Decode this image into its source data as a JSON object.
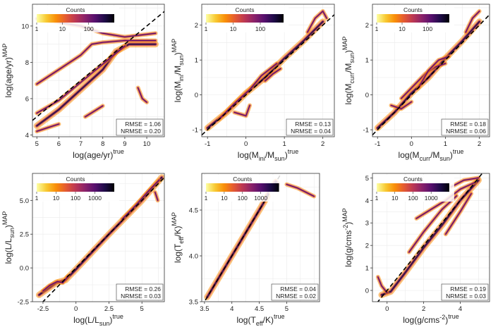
{
  "chart_data": [
    {
      "type": "heatmap",
      "xlabel": "log(age/yr)",
      "xlabel_sup": "true",
      "ylabel": "log(age/yr)",
      "ylabel_sup": "MAP",
      "xlim": [
        4.8,
        10.8
      ],
      "ylim": [
        3.9,
        11.2
      ],
      "xticks": [
        5,
        6,
        7,
        8,
        9,
        10
      ],
      "yticks": [
        4,
        6,
        8,
        10
      ],
      "legend_title": "Counts",
      "legend_ticks": [
        {
          "label": "1",
          "frac": 0.0
        },
        {
          "label": "10",
          "frac": 0.33
        },
        {
          "label": "100",
          "frac": 0.67
        }
      ],
      "rmse_text": "RMSE = 1.06",
      "nrmse_text": "NRMSE = 0.20",
      "line": [
        4.8,
        10.8
      ],
      "density_tracks": [
        [
          [
            5.0,
            4.5
          ],
          [
            6.0,
            5.4
          ],
          [
            7.0,
            6.5
          ],
          [
            8.0,
            7.6
          ],
          [
            8.6,
            8.6
          ],
          [
            9.2,
            9.0
          ],
          [
            10.4,
            9.0
          ]
        ],
        [
          [
            5.0,
            5.2
          ],
          [
            6.0,
            5.9
          ],
          [
            7.0,
            6.9
          ],
          [
            8.0,
            7.9
          ],
          [
            9.0,
            8.9
          ]
        ],
        [
          [
            5.0,
            6.8
          ],
          [
            6.0,
            7.6
          ],
          [
            7.0,
            8.4
          ],
          [
            7.5,
            9.0
          ],
          [
            8.0,
            9.1
          ],
          [
            9.0,
            9.2
          ],
          [
            10.4,
            9.2
          ]
        ],
        [
          [
            5.0,
            4.2
          ],
          [
            5.5,
            4.4
          ],
          [
            6.0,
            4.6
          ]
        ],
        [
          [
            7.2,
            5.0
          ],
          [
            7.6,
            5.3
          ],
          [
            8.0,
            5.6
          ]
        ],
        [
          [
            5.0,
            10.4
          ],
          [
            6.0,
            10.2
          ],
          [
            7.0,
            10.0
          ],
          [
            8.0,
            9.6
          ],
          [
            9.0,
            9.4
          ],
          [
            10.4,
            9.6
          ]
        ],
        [
          [
            9.6,
            6.6
          ],
          [
            9.8,
            6.0
          ],
          [
            10.0,
            5.8
          ]
        ]
      ]
    },
    {
      "type": "heatmap",
      "xlabel": "log(M_ini/M_sun)",
      "xlabel_sup": "true",
      "ylabel": "log(M_ini/M_sun)",
      "ylabel_sup": "MAP",
      "xlim": [
        -1.15,
        2.3
      ],
      "ylim": [
        -1.2,
        2.6
      ],
      "xticks": [
        -1,
        0,
        1,
        2
      ],
      "yticks": [
        -1,
        0,
        1,
        2
      ],
      "legend_title": "Counts",
      "legend_ticks": [
        {
          "label": "1",
          "frac": 0.0
        },
        {
          "label": "10",
          "frac": 0.35
        },
        {
          "label": "100",
          "frac": 0.7
        }
      ],
      "rmse_text": "RMSE = 0.13",
      "nrmse_text": "NRMSE = 0.04",
      "line": [
        -1.15,
        2.3
      ],
      "density_tracks": [
        [
          [
            -1.0,
            -0.95
          ],
          [
            -0.5,
            -0.5
          ],
          [
            0.0,
            0.05
          ],
          [
            0.5,
            0.5
          ],
          [
            1.0,
            1.05
          ],
          [
            1.5,
            1.55
          ],
          [
            2.0,
            2.1
          ]
        ],
        [
          [
            -0.7,
            -0.7
          ],
          [
            -0.3,
            -0.25
          ],
          [
            0.1,
            0.15
          ],
          [
            0.4,
            0.55
          ],
          [
            0.8,
            0.9
          ]
        ],
        [
          [
            -0.3,
            -0.5
          ],
          [
            0.0,
            -0.6
          ],
          [
            0.1,
            -0.3
          ]
        ],
        [
          [
            1.6,
            1.8
          ],
          [
            1.8,
            2.2
          ],
          [
            2.0,
            2.4
          ],
          [
            2.1,
            2.2
          ]
        ],
        [
          [
            0.5,
            0.4
          ],
          [
            0.7,
            0.6
          ],
          [
            0.9,
            0.75
          ]
        ]
      ]
    },
    {
      "type": "heatmap",
      "xlabel": "log(M_curr/M_sun)",
      "xlabel_sup": "true",
      "ylabel": "log(M_curr/M_sun)",
      "ylabel_sup": "MAP",
      "xlim": [
        -1.15,
        2.3
      ],
      "ylim": [
        -1.2,
        2.6
      ],
      "xticks": [
        -1,
        0,
        1,
        2
      ],
      "yticks": [
        -1,
        0,
        1,
        2
      ],
      "legend_title": "Counts",
      "legend_ticks": [
        {
          "label": "1",
          "frac": 0.0
        },
        {
          "label": "10",
          "frac": 0.35
        },
        {
          "label": "100",
          "frac": 0.7
        }
      ],
      "rmse_text": "RMSE = 0.18",
      "nrmse_text": "NRMSE = 0.06",
      "line": [
        -1.15,
        2.3
      ],
      "density_tracks": [
        [
          [
            -1.0,
            -0.95
          ],
          [
            -0.5,
            -0.5
          ],
          [
            0.0,
            0.05
          ],
          [
            0.5,
            0.5
          ],
          [
            1.0,
            1.05
          ],
          [
            1.5,
            1.55
          ],
          [
            2.0,
            2.1
          ]
        ],
        [
          [
            -0.3,
            -0.1
          ],
          [
            0.1,
            0.3
          ],
          [
            0.4,
            0.6
          ],
          [
            0.7,
            0.8
          ],
          [
            1.0,
            0.9
          ]
        ],
        [
          [
            0.2,
            0.2
          ],
          [
            0.5,
            0.7
          ],
          [
            0.8,
            1.0
          ],
          [
            1.1,
            1.1
          ]
        ],
        [
          [
            1.6,
            1.8
          ],
          [
            1.8,
            2.2
          ],
          [
            2.0,
            2.4
          ]
        ],
        [
          [
            -0.6,
            -0.3
          ],
          [
            -0.3,
            -0.4
          ],
          [
            0.0,
            -0.2
          ]
        ]
      ]
    },
    {
      "type": "heatmap",
      "xlabel": "log(L/L_sun)",
      "xlabel_sup": "true",
      "ylabel": "log(L/L_sun)",
      "ylabel_sup": "MAP",
      "xlim": [
        -3.3,
        6.7
      ],
      "ylim": [
        -2.5,
        7.0
      ],
      "xticks": [
        -2.5,
        0.0,
        2.5,
        5.0
      ],
      "yticks": [
        -2.5,
        0.0,
        2.5,
        5.0
      ],
      "legend_title": "Counts",
      "legend_ticks": [
        {
          "label": "1",
          "frac": 0.0
        },
        {
          "label": "10",
          "frac": 0.25
        },
        {
          "label": "100",
          "frac": 0.5
        },
        {
          "label": "1000",
          "frac": 0.75
        }
      ],
      "rmse_text": "RMSE = 0.26",
      "nrmse_text": "NRMSE = 0.03",
      "line": [
        -3.3,
        6.7
      ],
      "density_tracks": [
        [
          [
            -2.8,
            -2.0
          ],
          [
            -1.5,
            -1.1
          ],
          [
            -0.8,
            -0.9
          ],
          [
            0.0,
            -0.1
          ],
          [
            2.5,
            2.5
          ],
          [
            5.0,
            5.0
          ],
          [
            6.5,
            6.7
          ]
        ],
        [
          [
            -2.5,
            -1.7
          ],
          [
            -2.0,
            -1.3
          ],
          [
            -1.4,
            -1.0
          ],
          [
            -1.0,
            -1.1
          ],
          [
            -0.6,
            -0.6
          ]
        ],
        [
          [
            3.5,
            3.6
          ],
          [
            4.5,
            4.6
          ],
          [
            5.5,
            5.7
          ],
          [
            6.3,
            6.5
          ]
        ],
        [
          [
            6.0,
            5.6
          ],
          [
            6.2,
            5.0
          ]
        ]
      ]
    },
    {
      "type": "heatmap",
      "xlabel": "log(T_eff/K)",
      "xlabel_sup": "true",
      "ylabel": "log(T_eff/K)",
      "ylabel_sup": "MAP",
      "xlim": [
        3.45,
        5.6
      ],
      "ylim": [
        3.5,
        4.9
      ],
      "xticks": [
        3.5,
        4.0,
        4.5,
        5.0
      ],
      "yticks": [
        3.5,
        4.0,
        4.5
      ],
      "legend_title": "Counts",
      "legend_ticks": [
        {
          "label": "1",
          "frac": 0.0
        },
        {
          "label": "10",
          "frac": 0.25
        },
        {
          "label": "100",
          "frac": 0.5
        },
        {
          "label": "1000",
          "frac": 0.75
        }
      ],
      "rmse_text": "RMSE = 0.04",
      "nrmse_text": "NRMSE = 0.02",
      "line": [
        3.45,
        5.6
      ],
      "density_tracks": [
        [
          [
            3.55,
            3.55
          ],
          [
            3.8,
            3.8
          ],
          [
            4.0,
            4.0
          ],
          [
            4.25,
            4.25
          ],
          [
            4.5,
            4.5
          ],
          [
            4.65,
            4.65
          ]
        ],
        [
          [
            4.6,
            4.6
          ],
          [
            4.7,
            4.75
          ],
          [
            4.8,
            4.82
          ],
          [
            4.85,
            4.78
          ]
        ],
        [
          [
            5.0,
            4.78
          ],
          [
            5.2,
            4.74
          ],
          [
            5.5,
            4.65
          ]
        ]
      ]
    },
    {
      "type": "heatmap",
      "xlabel": "log(g/cms^-2)",
      "xlabel_sup": "true",
      "ylabel": "log(g/cms^-2)",
      "ylabel_sup": "MAP",
      "xlim": [
        -0.8,
        5.6
      ],
      "ylim": [
        -0.5,
        5.2
      ],
      "xticks": [
        0,
        2,
        4
      ],
      "yticks": [
        0,
        1,
        2,
        3,
        4,
        5
      ],
      "legend_title": "Counts",
      "legend_ticks": [
        {
          "label": "1",
          "frac": 0.0
        },
        {
          "label": "10",
          "frac": 0.25
        },
        {
          "label": "100",
          "frac": 0.5
        },
        {
          "label": "1000",
          "frac": 0.75
        }
      ],
      "rmse_text": "RMSE = 0.19",
      "nrmse_text": "NRMSE = 0.03",
      "line": [
        -0.8,
        5.6
      ],
      "density_tracks": [
        [
          [
            -0.3,
            -0.2
          ],
          [
            0.2,
            -0.05
          ],
          [
            1.0,
            0.8
          ],
          [
            2.0,
            1.9
          ],
          [
            3.0,
            2.9
          ],
          [
            4.0,
            4.0
          ],
          [
            5.0,
            4.9
          ]
        ],
        [
          [
            -0.5,
            0.6
          ],
          [
            -0.3,
            0.2
          ],
          [
            0.0,
            -0.1
          ]
        ],
        [
          [
            1.2,
            1.7
          ],
          [
            2.0,
            2.6
          ],
          [
            3.0,
            3.6
          ],
          [
            3.8,
            4.2
          ]
        ],
        [
          [
            1.6,
            3.2
          ],
          [
            2.4,
            3.6
          ],
          [
            3.2,
            4.0
          ],
          [
            4.0,
            4.5
          ],
          [
            4.8,
            4.8
          ]
        ],
        [
          [
            3.5,
            4.6
          ],
          [
            4.2,
            4.9
          ],
          [
            5.0,
            5.0
          ]
        ],
        [
          [
            3.2,
            2.5
          ],
          [
            4.0,
            3.5
          ],
          [
            4.6,
            4.3
          ]
        ]
      ]
    }
  ],
  "colorbar_colors": [
    "#fcffa4",
    "#f8c932",
    "#f98e09",
    "#e45a31",
    "#bc3754",
    "#8a226a",
    "#57106e",
    "#1f0c48",
    "#000004"
  ]
}
